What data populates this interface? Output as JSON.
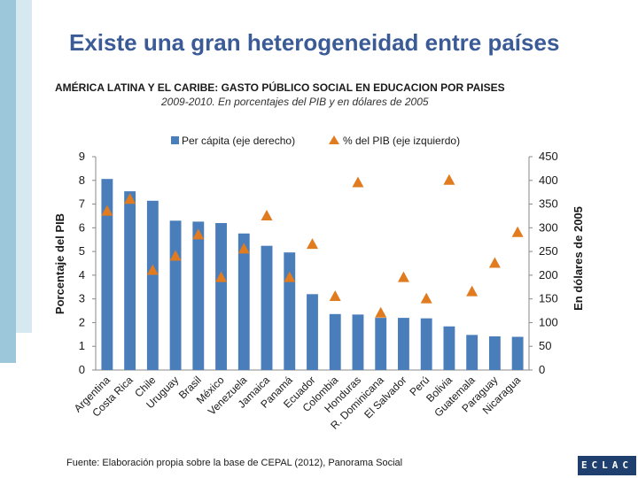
{
  "slide_title": "Existe una gran heterogeneidad entre países",
  "source": "Fuente:  Elaboración propia sobre la base de CEPAL (2012), Panorama Social",
  "logo_text": "ECLAC",
  "colors": {
    "bar": "#4a7ebb",
    "marker": "#e07b1f",
    "title": "#3b5b97"
  },
  "chart_data": {
    "type": "bar",
    "title": "AMÉRICA LATINA Y EL CARIBE: GASTO PÚBLICO SOCIAL EN EDUCACION POR PAISES",
    "subtitle": "2009-2010. En porcentajes del PIB y en dólares de 2005",
    "categories": [
      "Argentina",
      "Costa Rica",
      "Chile",
      "Uruguay",
      "Brasil",
      "México",
      "Venezuela",
      "Jamaica",
      "Panamá",
      "Ecuador",
      "Colombia",
      "Honduras",
      "R. Dominicana",
      "El Salvador",
      "Perú",
      "Bolivia",
      "Guatemala",
      "Paraguay",
      "Nicaragua"
    ],
    "series": [
      {
        "name": "Per cápita (eje derecho)",
        "kind": "bar",
        "axis": "right",
        "values": [
          403,
          377,
          357,
          315,
          313,
          310,
          288,
          262,
          248,
          160,
          118,
          117,
          110,
          110,
          109,
          92,
          74,
          71,
          70
        ]
      },
      {
        "name": "% del PIB (eje izquierdo)",
        "kind": "marker",
        "axis": "left",
        "values": [
          6.7,
          7.2,
          4.2,
          4.8,
          5.7,
          3.9,
          5.1,
          6.5,
          3.9,
          5.3,
          3.1,
          7.9,
          2.4,
          3.9,
          3.0,
          8.0,
          3.3,
          4.5,
          5.8
        ]
      }
    ],
    "ylabel_left": "Porcentaje del PIB",
    "ylabel_right": "En dólares de 2005",
    "ylim_left": [
      0,
      9
    ],
    "yticks_left": [
      "0",
      "1",
      "2",
      "3",
      "4",
      "5",
      "6",
      "7",
      "8",
      "9"
    ],
    "ylim_right": [
      0,
      450
    ],
    "yticks_right": [
      "0",
      "50",
      "100",
      "150",
      "200",
      "250",
      "300",
      "350",
      "400",
      "450"
    ],
    "legend_position": "top"
  }
}
